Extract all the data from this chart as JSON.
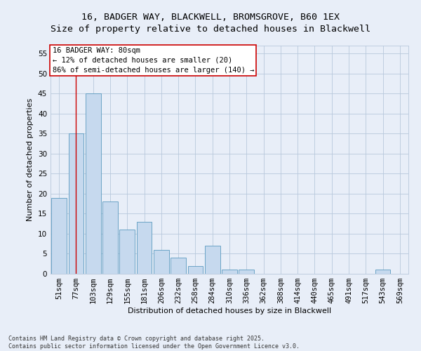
{
  "title_line1": "16, BADGER WAY, BLACKWELL, BROMSGROVE, B60 1EX",
  "title_line2": "Size of property relative to detached houses in Blackwell",
  "xlabel": "Distribution of detached houses by size in Blackwell",
  "ylabel": "Number of detached properties",
  "bar_labels": [
    "51sqm",
    "77sqm",
    "103sqm",
    "129sqm",
    "155sqm",
    "181sqm",
    "206sqm",
    "232sqm",
    "258sqm",
    "284sqm",
    "310sqm",
    "336sqm",
    "362sqm",
    "388sqm",
    "414sqm",
    "440sqm",
    "465sqm",
    "491sqm",
    "517sqm",
    "543sqm",
    "569sqm"
  ],
  "bar_values": [
    19,
    35,
    45,
    18,
    11,
    13,
    6,
    4,
    2,
    7,
    1,
    1,
    0,
    0,
    0,
    0,
    0,
    0,
    0,
    1,
    0
  ],
  "bar_color": "#c6d9ee",
  "bar_edge_color": "#5a9abf",
  "background_color": "#e8eef8",
  "grid_color": "#b8c8dc",
  "vline_x": 1,
  "vline_color": "#cc0000",
  "annotation_text": "16 BADGER WAY: 80sqm\n← 12% of detached houses are smaller (20)\n86% of semi-detached houses are larger (140) →",
  "annotation_box_facecolor": "#ffffff",
  "annotation_edge_color": "#cc0000",
  "annotation_fontsize": 7.5,
  "ylim": [
    0,
    57
  ],
  "yticks": [
    0,
    5,
    10,
    15,
    20,
    25,
    30,
    35,
    40,
    45,
    50,
    55
  ],
  "footer_text": "Contains HM Land Registry data © Crown copyright and database right 2025.\nContains public sector information licensed under the Open Government Licence v3.0.",
  "title_fontsize": 9.5,
  "axis_label_fontsize": 8,
  "tick_fontsize": 7.5
}
